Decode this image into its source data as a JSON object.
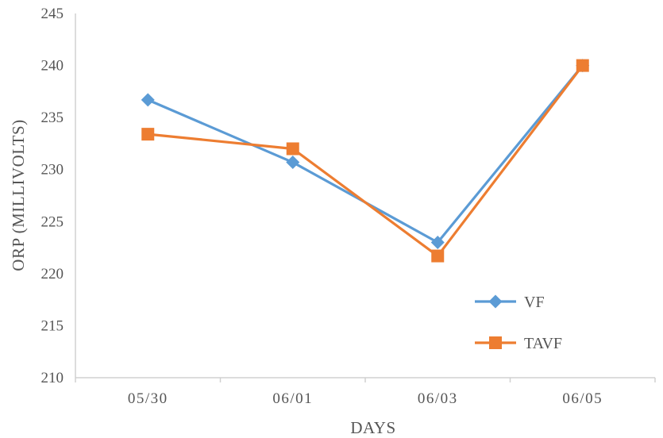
{
  "chart_data": {
    "type": "line",
    "categories": [
      "05/30",
      "06/01",
      "06/03",
      "06/05"
    ],
    "xlabel": "DAYS",
    "ylabel": "ORP (MILLIVOLTS)",
    "ylim": [
      210,
      245
    ],
    "yticks": [
      210,
      215,
      220,
      225,
      230,
      235,
      240,
      245
    ],
    "grid": false,
    "legend_position": "bottom-right",
    "series": [
      {
        "name": "VF",
        "values": [
          236.7,
          230.7,
          223.0,
          240.0
        ],
        "color": "#5b9bd5",
        "marker": "diamond"
      },
      {
        "name": "TAVF",
        "values": [
          233.4,
          232.0,
          221.7,
          240.0
        ],
        "color": "#ed7d31",
        "marker": "square"
      }
    ]
  }
}
